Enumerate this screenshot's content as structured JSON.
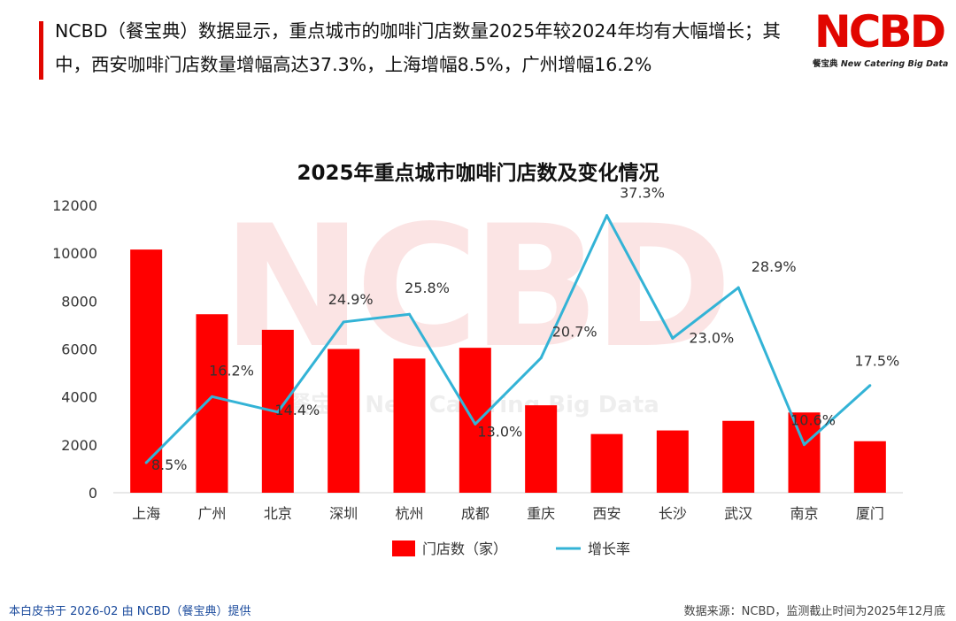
{
  "header": {
    "headline": "NCBD（餐宝典）数据显示，重点城市的咖啡门店数量2025年较2024年均有大幅增长；其中，西安咖啡门店数量增幅高达37.3%，上海增幅8.5%，广州增幅16.2%"
  },
  "logo": {
    "mark": "NCBD",
    "sub_cn": "餐宝典",
    "sub_en": "New Catering Big Data"
  },
  "watermark": {
    "mark": "NCBD",
    "sub": "餐宝典 New Catering Big Data"
  },
  "colors": {
    "bar": "#ff0000",
    "line": "#33b3d6",
    "accent": "#e10600"
  },
  "chart_data": {
    "type": "bar",
    "title": "2025年重点城市咖啡门店数及变化情况",
    "categories": [
      "上海",
      "广州",
      "北京",
      "深圳",
      "杭州",
      "成都",
      "重庆",
      "西安",
      "长沙",
      "武汉",
      "南京",
      "厦门"
    ],
    "series": [
      {
        "name": "门店数（家）",
        "type": "bar",
        "axis": "left",
        "values": [
          10150,
          7450,
          6800,
          6000,
          5600,
          6050,
          3650,
          2450,
          2600,
          3000,
          3350,
          2150
        ]
      },
      {
        "name": "增长率",
        "type": "line",
        "axis": "right",
        "values": [
          8.5,
          16.2,
          14.4,
          24.9,
          25.8,
          13.0,
          20.7,
          37.3,
          23.0,
          28.9,
          10.6,
          17.5
        ],
        "labels": [
          "8.5%",
          "16.2%",
          "14.4%",
          "24.9%",
          "25.8%",
          "13.0%",
          "20.7%",
          "37.3%",
          "23.0%",
          "28.9%",
          "10.6%",
          "17.5%"
        ]
      }
    ],
    "left_axis": {
      "ylim": [
        0,
        12000
      ],
      "ticks": [
        "0",
        "2000",
        "4000",
        "6000",
        "8000",
        "10000",
        "12000"
      ]
    },
    "right_axis": {
      "ylim": [
        5,
        38.5
      ],
      "visible": false
    },
    "legend": {
      "position": "bottom",
      "entries": [
        "门店数（家）",
        "增长率"
      ]
    },
    "grid": false
  },
  "footer": {
    "left": "本白皮书于 2026-02 由 NCBD（餐宝典）提供",
    "right": "数据来源：NCBD，监测截止时间为2025年12月底"
  }
}
